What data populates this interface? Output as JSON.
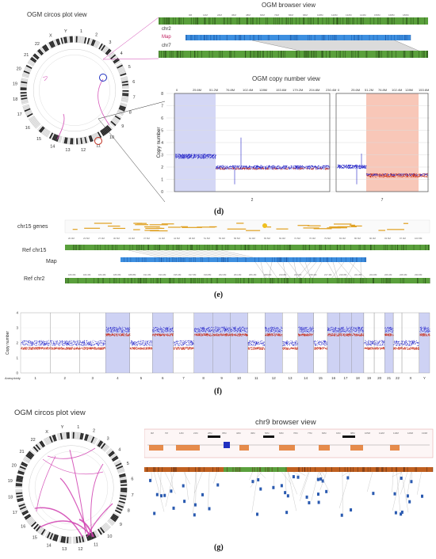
{
  "panel_d": {
    "circos_title": "OGM circos plot view",
    "browser_title": "OGM browser view",
    "track_labels": [
      "chr2",
      "Map",
      "chr7"
    ],
    "copy_title": "OGM copy number view",
    "y_axis_label": "Copy number",
    "y_ticks": [
      "0",
      "1",
      "2",
      "3",
      "4",
      "5",
      "6",
      "7",
      "8"
    ],
    "x_ticks_chr2": [
      "0",
      "25.6M",
      "51.2M",
      "76.8M",
      "102.4M",
      "128M",
      "153.6M",
      "179.2M",
      "204.8M",
      "230.4M"
    ],
    "x_ticks_chr7": [
      "0",
      "25.6M",
      "51.2M",
      "76.8M",
      "102.4M",
      "128M",
      "153.6M"
    ],
    "chr_labels": [
      "2",
      "7"
    ],
    "label": "(d)"
  },
  "panel_e": {
    "genes_label": "chr15 genes",
    "ref1_label": "Ref chr15",
    "map_label": "Map",
    "ref2_label": "Ref chr2",
    "label": "(e)"
  },
  "panel_f": {
    "y_axis_label": "Copy number",
    "y_ticks": [
      "0",
      "1",
      "2",
      "3",
      "4"
    ],
    "aneuploidy_label": "Aneuploidy",
    "chromosomes": [
      "1",
      "2",
      "3",
      "4",
      "5",
      "6",
      "7",
      "8",
      "9",
      "10",
      "11",
      "12",
      "13",
      "14",
      "15",
      "16",
      "17",
      "18",
      "19",
      "20",
      "21",
      "22",
      "X",
      "Y"
    ],
    "label": "(f)"
  },
  "panel_g": {
    "circos_title": "OGM circos plot view",
    "browser_title": "chr9 browser view",
    "label": "(g)"
  },
  "circos_chromosomes": [
    "1",
    "2",
    "3",
    "4",
    "5",
    "6",
    "7",
    "8",
    "9",
    "10",
    "11",
    "12",
    "13",
    "14",
    "15",
    "16",
    "17",
    "18",
    "19",
    "20",
    "21",
    "22",
    "X",
    "Y"
  ],
  "colors": {
    "blue_shade": "#c9cdf3",
    "red_shade": "#f6b9a6",
    "cn_blue": "#2323c8",
    "cn_red": "#c8321e",
    "map_blue": "#3d8fe0",
    "ref_green": "#5aa03c",
    "pink_link": "#d040b0"
  }
}
